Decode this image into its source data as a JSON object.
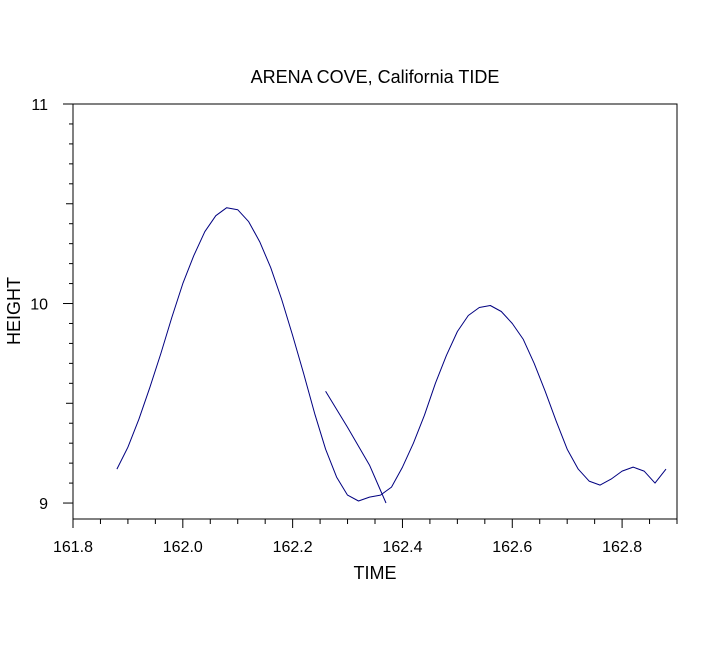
{
  "chart_data": {
    "type": "line",
    "title": "ARENA COVE, California TIDE",
    "xlabel": "TIME",
    "ylabel": "HEIGHT",
    "xlim": [
      161.8,
      162.9
    ],
    "ylim": [
      8.92,
      11
    ],
    "x_ticks": [
      161.8,
      162.0,
      162.2,
      162.4,
      162.6,
      162.8
    ],
    "x_tick_labels": [
      "161.8",
      "162.0",
      "162.2",
      "162.4",
      "162.6",
      "162.8"
    ],
    "y_ticks": [
      9,
      10,
      11
    ],
    "y_tick_labels": [
      "9",
      "10",
      "11"
    ],
    "grid": false,
    "line_color": "#000080",
    "series": [
      {
        "x": [
          161.88,
          161.9,
          161.92,
          161.94,
          161.96,
          161.98,
          162.0,
          162.02,
          162.04,
          162.06,
          162.08,
          162.1,
          162.12,
          162.14,
          162.16,
          162.18,
          162.2,
          162.22,
          162.24,
          162.26,
          162.28,
          162.3,
          162.32,
          162.34,
          162.36,
          162.38,
          162.4,
          162.42,
          162.44,
          162.46,
          162.48,
          162.5,
          162.52,
          162.54,
          162.56,
          162.58,
          162.6,
          162.62,
          162.64,
          162.66,
          162.68,
          162.7,
          162.72,
          162.74,
          162.76,
          162.78,
          162.8,
          162.82,
          162.84,
          162.86,
          162.88
        ],
        "y": [
          9.17,
          9.28,
          9.42,
          9.58,
          9.75,
          9.93,
          10.1,
          10.24,
          10.36,
          10.44,
          10.48,
          10.47,
          10.41,
          10.31,
          10.18,
          10.02,
          9.84,
          9.65,
          9.45,
          9.27,
          9.13,
          9.04,
          9.01,
          9.03,
          9.04,
          9.08,
          9.18,
          9.3,
          9.44,
          9.6,
          9.74,
          9.86,
          9.94,
          9.98,
          9.99,
          9.96,
          9.9,
          9.82,
          9.7,
          9.56,
          9.41,
          9.27,
          9.17,
          9.11,
          9.09,
          9.12,
          9.16,
          9.18,
          9.16,
          9.1,
          9.17
        ]
      },
      {
        "x": [
          162.26,
          162.3,
          162.34,
          162.37
        ],
        "y": [
          9.56,
          9.38,
          9.19,
          9.0
        ]
      }
    ]
  }
}
